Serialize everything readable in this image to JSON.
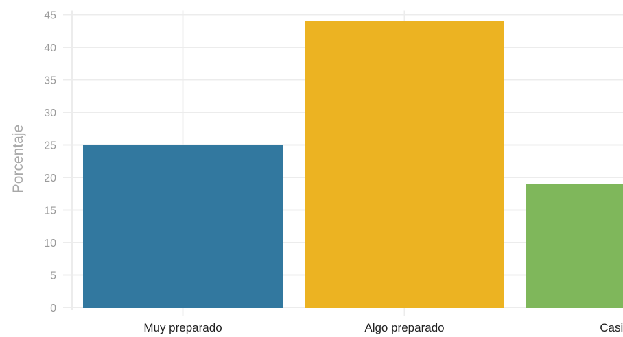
{
  "chart_data": {
    "type": "bar",
    "categories": [
      "Muy preparado",
      "Algo preparado",
      "Casi nada"
    ],
    "values": [
      25,
      44,
      19
    ],
    "colors": [
      "#32789f",
      "#ecb322",
      "#7fb75b"
    ],
    "title": "",
    "xlabel": "",
    "ylabel": "Porcentaje",
    "ylim": [
      0,
      45
    ],
    "yticks": [
      0,
      5,
      10,
      15,
      20,
      25,
      30,
      35,
      40,
      45
    ],
    "grid": true,
    "legend": "none"
  }
}
